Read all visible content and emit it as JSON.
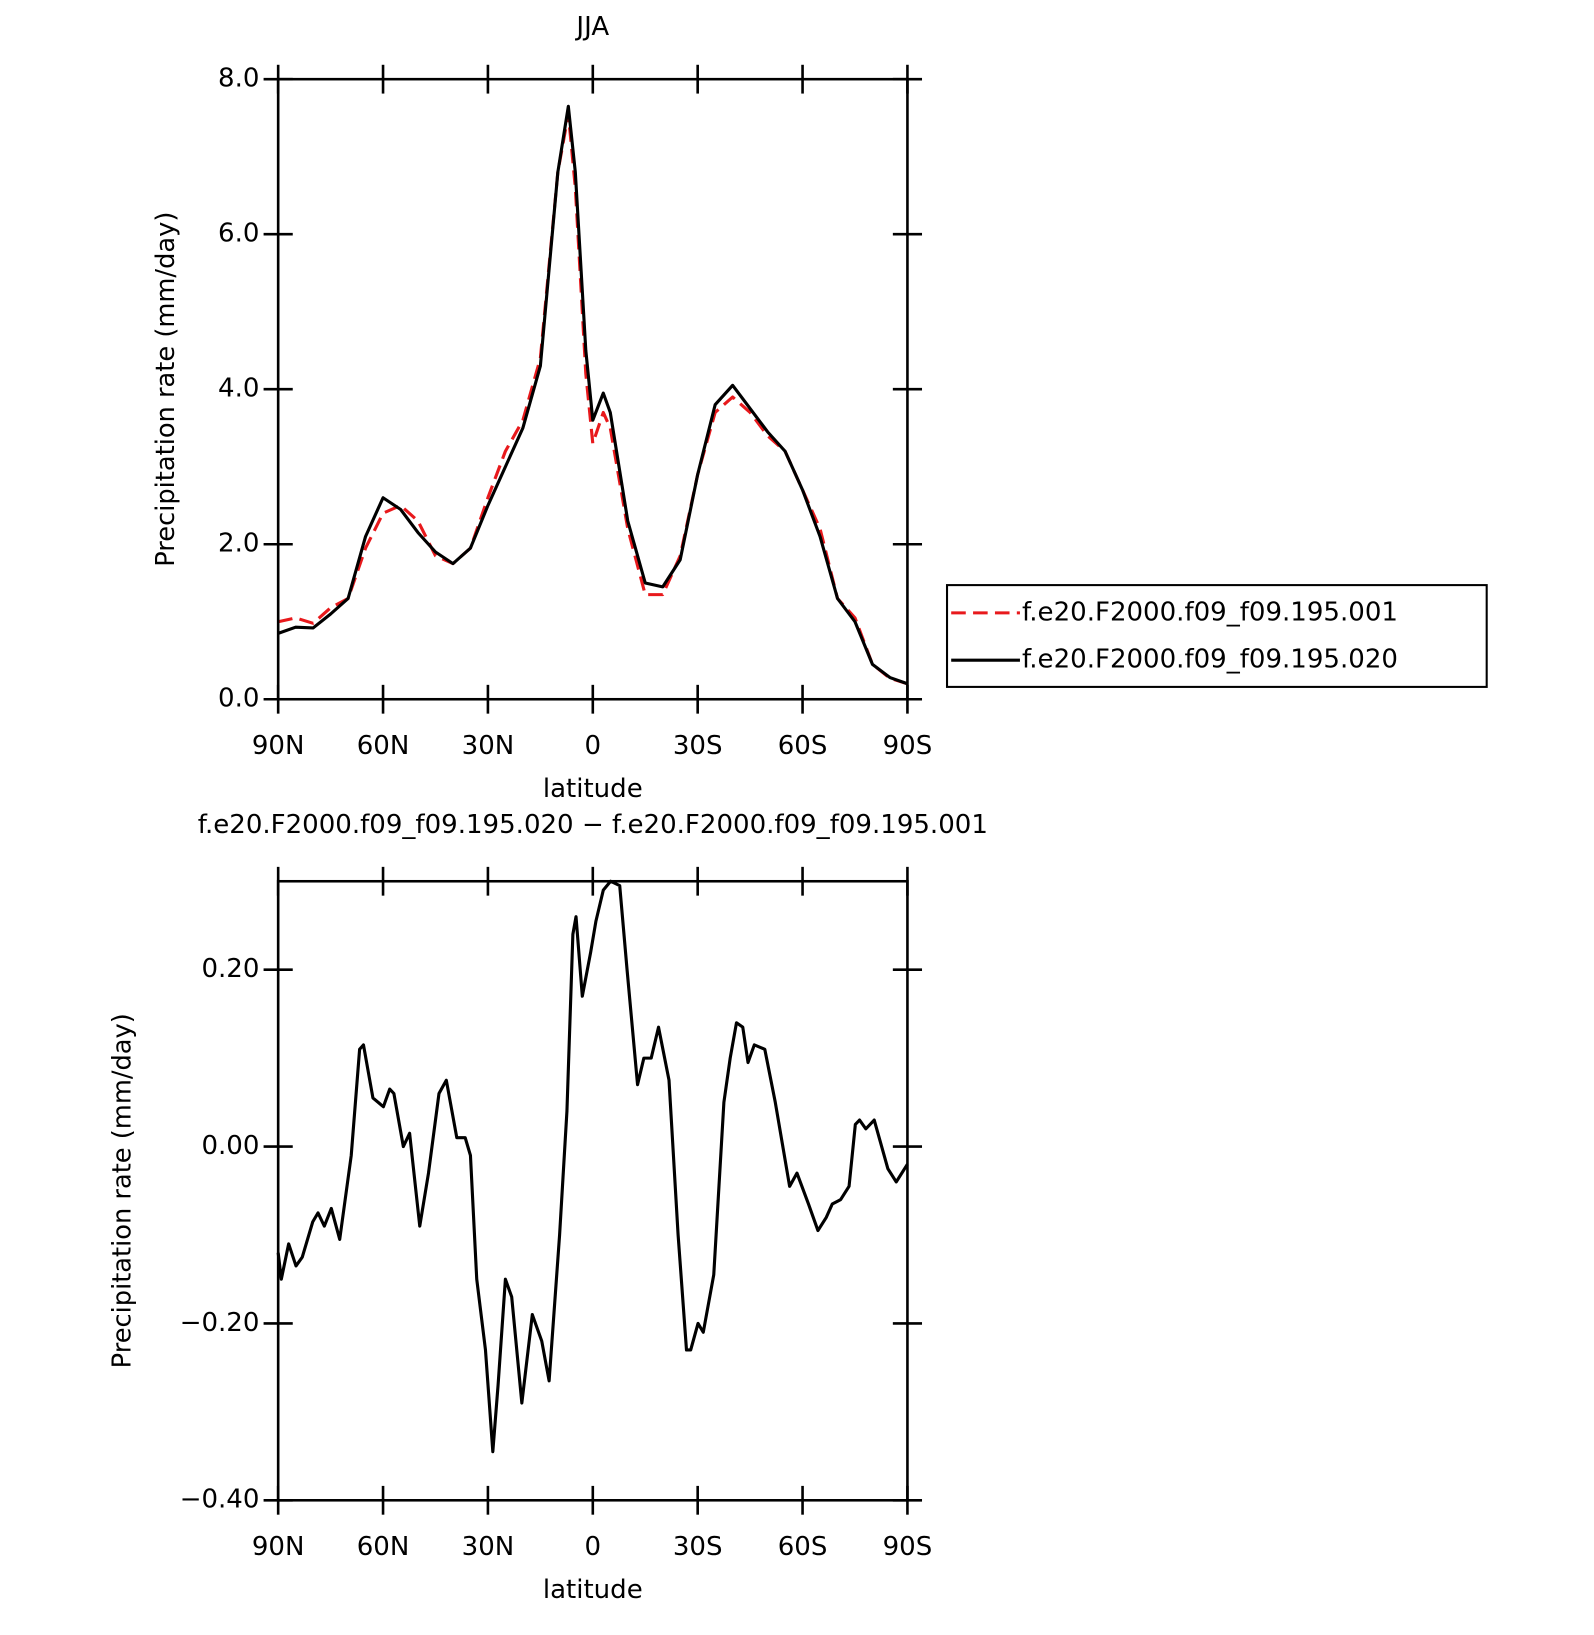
{
  "chart_data": [
    {
      "type": "line",
      "title": "JJA",
      "x_label": "latitude",
      "y_label": "Precipitation rate (mm/day)",
      "x": [
        90,
        85,
        80,
        75,
        70,
        65,
        60,
        55,
        50,
        45,
        40,
        35,
        30,
        25,
        20,
        15,
        10,
        7,
        5,
        2,
        0,
        -3,
        -5,
        -10,
        -15,
        -20,
        -25,
        -30,
        -35,
        -40,
        -45,
        -50,
        -55,
        -60,
        -65,
        -70,
        -75,
        -80,
        -85,
        -90
      ],
      "series": [
        {
          "name": "f.e20.F2000.f09_f09.195.001",
          "color": "#e8191c",
          "line_style": "dashed",
          "values": [
            1.0,
            1.05,
            0.98,
            1.18,
            1.3,
            1.95,
            2.4,
            2.5,
            2.3,
            1.85,
            1.75,
            1.95,
            2.6,
            3.2,
            3.6,
            4.4,
            6.8,
            7.55,
            6.6,
            4.2,
            3.3,
            3.7,
            3.5,
            2.2,
            1.35,
            1.35,
            1.85,
            2.9,
            3.7,
            3.9,
            3.7,
            3.4,
            3.2,
            2.7,
            2.2,
            1.3,
            1.05,
            0.45,
            0.27,
            0.2
          ]
        },
        {
          "name": "f.e20.F2000.f09_f09.195.020",
          "color": "#000000",
          "line_style": "solid",
          "values": [
            0.85,
            0.93,
            0.92,
            1.1,
            1.3,
            2.1,
            2.6,
            2.45,
            2.15,
            1.9,
            1.75,
            1.95,
            2.5,
            3.0,
            3.5,
            4.3,
            6.8,
            7.65,
            6.8,
            4.5,
            3.6,
            3.95,
            3.7,
            2.3,
            1.5,
            1.45,
            1.8,
            2.9,
            3.8,
            4.05,
            3.75,
            3.45,
            3.2,
            2.7,
            2.1,
            1.3,
            1.0,
            0.45,
            0.28,
            0.2
          ]
        }
      ],
      "xlim": [
        90,
        -90
      ],
      "xticks": [
        {
          "value": 90,
          "label": "90N"
        },
        {
          "value": 60,
          "label": "60N"
        },
        {
          "value": 30,
          "label": "30N"
        },
        0,
        {
          "value": -30,
          "label": "30S"
        },
        {
          "value": -60,
          "label": "60S"
        },
        {
          "value": -90,
          "label": "90S"
        }
      ],
      "ylim": [
        0,
        8
      ],
      "yticks": [
        {
          "value": 0,
          "label": "0.0"
        },
        {
          "value": 2,
          "label": "2.0"
        },
        {
          "value": 4,
          "label": "4.0"
        },
        {
          "value": 6,
          "label": "6.0"
        },
        {
          "value": 8,
          "label": "8.0"
        }
      ],
      "legend": "right"
    },
    {
      "type": "line",
      "title": "f.e20.F2000.f09_f09.195.020 − f.e20.F2000.f09_f09.195.001",
      "x_label": "latitude",
      "y_label": "Precipitation rate (mm/day)",
      "x": [
        90,
        89.1,
        87,
        84.9,
        83.1,
        80.1,
        78.6,
        76.8,
        74.8,
        72.4,
        69.1,
        66.7,
        65.6,
        62.9,
        59.9,
        58.1,
        56.9,
        54.2,
        52.4,
        49.5,
        47,
        44,
        41.9,
        38.9,
        36.5,
        35,
        33.2,
        30.7,
        28.6,
        27.1,
        25,
        23.2,
        20.3,
        17.3,
        14.6,
        12.5,
        9.5,
        7.4,
        5.7,
        4.8,
        3,
        0.6,
        -0.9,
        -3,
        -5.1,
        -7.7,
        -9.8,
        -12.8,
        -14.6,
        -16.7,
        -18.8,
        -21.8,
        -24.4,
        -26.8,
        -28,
        -30.1,
        -31.6,
        -34.6,
        -37.5,
        -39.3,
        -41.1,
        -42.9,
        -44.4,
        -46.2,
        -49.2,
        -52.2,
        -56.3,
        -58.4,
        -61.7,
        -64.4,
        -66.8,
        -68.5,
        -70.9,
        -73.3,
        -75.1,
        -76.3,
        -78.1,
        -80.5,
        -84.4,
        -86.8,
        -90
      ],
      "series": [
        {
          "color": "#000000",
          "line_style": "solid",
          "values": [
            -0.12,
            -0.15,
            -0.11,
            -0.135,
            -0.125,
            -0.085,
            -0.075,
            -0.09,
            -0.07,
            -0.105,
            -0.01,
            0.11,
            0.115,
            0.055,
            0.045,
            0.065,
            0.06,
            0.0,
            0.015,
            -0.09,
            -0.03,
            0.06,
            0.075,
            0.01,
            0.01,
            -0.01,
            -0.15,
            -0.23,
            -0.345,
            -0.27,
            -0.15,
            -0.17,
            -0.29,
            -0.19,
            -0.22,
            -0.265,
            -0.1,
            0.04,
            0.24,
            0.26,
            0.17,
            0.22,
            0.255,
            0.29,
            0.3,
            0.295,
            0.2,
            0.07,
            0.1,
            0.1,
            0.135,
            0.075,
            -0.1,
            -0.23,
            -0.23,
            -0.2,
            -0.21,
            -0.145,
            0.05,
            0.1,
            0.14,
            0.135,
            0.095,
            0.115,
            0.11,
            0.05,
            -0.045,
            -0.03,
            -0.065,
            -0.095,
            -0.08,
            -0.065,
            -0.06,
            -0.045,
            0.025,
            0.03,
            0.02,
            0.03,
            -0.025,
            -0.04,
            -0.02
          ]
        }
      ],
      "xlim": [
        90,
        -90
      ],
      "xticks": [
        {
          "value": 90,
          "label": "90N"
        },
        {
          "value": 60,
          "label": "60N"
        },
        {
          "value": 30,
          "label": "30N"
        },
        0,
        {
          "value": -30,
          "label": "30S"
        },
        {
          "value": -60,
          "label": "60S"
        },
        {
          "value": -90,
          "label": "90S"
        }
      ],
      "ylim": [
        -0.4,
        0.3
      ],
      "yticks": [
        {
          "value": -0.4,
          "label": "−0.40"
        },
        {
          "value": -0.2,
          "label": "−0.20"
        },
        {
          "value": 0,
          "label": "0.00"
        },
        {
          "value": 0.2,
          "label": "0.20"
        }
      ]
    }
  ]
}
